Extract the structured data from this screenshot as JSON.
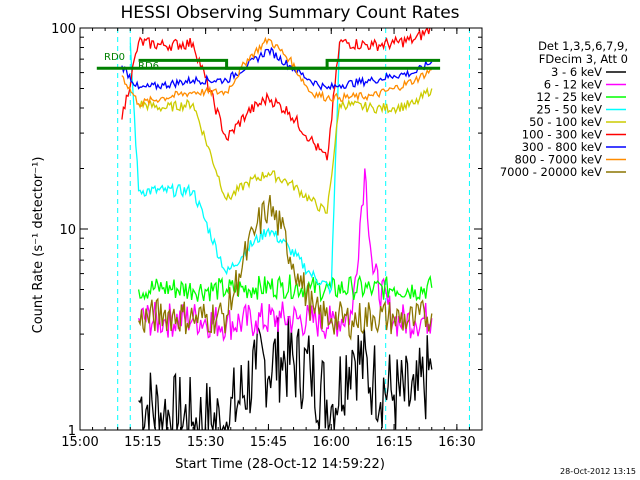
{
  "chart_data": {
    "type": "line",
    "title": "HESSI Observing Summary Count Rates",
    "xlabel": "Start Time (28-Oct-12 14:59:22)",
    "ylabel": "Count Rate (s⁻¹ detector⁻¹)",
    "y_scale": "log",
    "ylim": [
      1,
      100
    ],
    "xlim": [
      "15:00",
      "16:36"
    ],
    "x_ticks": [
      "15:00",
      "15:15",
      "15:30",
      "15:45",
      "16:00",
      "16:15",
      "16:30"
    ],
    "y_ticks": [
      "1",
      "10",
      "100"
    ],
    "grid": false,
    "legend_position": "right",
    "legend_header": [
      "Det 1,3,5,6,7,9,",
      "FDecim 3, Att 0"
    ],
    "footer_timestamp": "28-Oct-2012 13:15",
    "annotations": [
      "RD0",
      "RD6"
    ],
    "night_intervals": [
      {
        "start": "15:09",
        "end": "15:12"
      },
      {
        "start": "16:13",
        "end": "16:33"
      }
    ],
    "series": [
      {
        "name": "3 - 6 keV",
        "color": "#000000",
        "x": [
          "15:14",
          "15:20",
          "15:27",
          "15:35",
          "15:42",
          "15:48",
          "15:55",
          "16:00",
          "16:05",
          "16:10",
          "16:15",
          "16:20",
          "16:24"
        ],
        "y": [
          1.4,
          1.2,
          1.1,
          1.1,
          2.0,
          2.3,
          2.0,
          1.3,
          2.5,
          1.8,
          1.5,
          1.4,
          2.0
        ]
      },
      {
        "name": "6 - 12 keV",
        "color": "#ff00ff",
        "x": [
          "15:14",
          "15:20",
          "15:27",
          "15:35",
          "15:42",
          "15:48",
          "15:55",
          "16:00",
          "16:05",
          "16:08",
          "16:10",
          "16:15",
          "16:20",
          "16:24"
        ],
        "y": [
          3.6,
          3.5,
          3.6,
          3.4,
          3.5,
          3.6,
          3.5,
          3.4,
          3.8,
          20.0,
          6.0,
          3.5,
          3.5,
          3.6
        ]
      },
      {
        "name": "12 - 25 keV",
        "color": "#00ff00",
        "x": [
          "15:14",
          "15:20",
          "15:27",
          "15:35",
          "15:42",
          "15:48",
          "15:55",
          "16:00",
          "16:05",
          "16:10",
          "16:15",
          "16:20",
          "16:24"
        ],
        "y": [
          5.0,
          5.1,
          5.0,
          5.0,
          5.1,
          5.2,
          5.1,
          5.0,
          5.1,
          5.0,
          5.1,
          5.0,
          5.1
        ]
      },
      {
        "name": "25 - 50 keV",
        "color": "#00ffff",
        "x": [
          "15:12",
          "15:14",
          "15:20",
          "15:27",
          "15:35",
          "15:40",
          "15:45",
          "15:50",
          "15:55",
          "16:00",
          "16:02"
        ],
        "y": [
          85,
          15.5,
          15.5,
          15.5,
          6.0,
          8.0,
          10.0,
          8.0,
          6.0,
          5.0,
          85
        ]
      },
      {
        "name": "50 - 100 keV",
        "color": "#cccc00",
        "x": [
          "15:14",
          "15:20",
          "15:27",
          "15:35",
          "15:40",
          "15:45",
          "15:50",
          "15:55",
          "15:59",
          "16:02",
          "16:10",
          "16:15",
          "16:20",
          "16:24"
        ],
        "y": [
          42,
          40,
          42,
          14.0,
          17.0,
          19.0,
          17.0,
          14.0,
          12.0,
          42,
          40,
          40,
          42,
          50
        ]
      },
      {
        "name": "100 - 300 keV",
        "color": "#ff0000",
        "x": [
          "15:10",
          "15:14",
          "15:20",
          "15:27",
          "15:35",
          "15:40",
          "15:45",
          "15:50",
          "15:55",
          "15:59",
          "16:02",
          "16:10",
          "16:15",
          "16:20",
          "16:24"
        ],
        "y": [
          35,
          85,
          82,
          84,
          28,
          38,
          45,
          38,
          28,
          22,
          85,
          82,
          84,
          88,
          100
        ]
      },
      {
        "name": "300 - 800 keV",
        "color": "#0000ff",
        "x": [
          "15:10",
          "15:14",
          "15:20",
          "15:27",
          "15:35",
          "15:40",
          "15:45",
          "15:50",
          "15:55",
          "15:59",
          "16:02",
          "16:10",
          "16:15",
          "16:20",
          "16:24"
        ],
        "y": [
          65,
          50,
          52,
          55,
          55,
          65,
          78,
          65,
          55,
          50,
          52,
          55,
          58,
          60,
          68
        ]
      },
      {
        "name": "800 - 7000 keV",
        "color": "#ff8c00",
        "x": [
          "15:10",
          "15:14",
          "15:20",
          "15:27",
          "15:35",
          "15:40",
          "15:45",
          "15:50",
          "15:55",
          "15:59",
          "16:02",
          "16:10",
          "16:15",
          "16:20",
          "16:24"
        ],
        "y": [
          58,
          42,
          45,
          48,
          48,
          70,
          88,
          70,
          48,
          45,
          45,
          46,
          50,
          55,
          62
        ]
      },
      {
        "name": "7000 - 20000 keV",
        "color": "#8b7500",
        "x": [
          "15:14",
          "15:20",
          "15:27",
          "15:35",
          "15:38",
          "15:42",
          "15:45",
          "15:48",
          "15:52",
          "15:56",
          "16:00",
          "16:05",
          "16:10",
          "16:15",
          "16:20",
          "16:24"
        ],
        "y": [
          3.5,
          3.8,
          3.6,
          3.7,
          6.0,
          10.0,
          13.0,
          10.0,
          6.0,
          3.8,
          3.6,
          3.5,
          3.7,
          3.6,
          3.5,
          3.8
        ]
      },
      {
        "name": "RD0",
        "color": "#008000",
        "x": [
          "15:04",
          "16:26"
        ],
        "y": [
          63,
          63
        ]
      },
      {
        "name": "RD6",
        "color": "#008000",
        "x": [
          "15:14",
          "15:35",
          "15:35",
          "15:59",
          "15:59",
          "16:26"
        ],
        "y": [
          69,
          69,
          63,
          63,
          69,
          69
        ]
      }
    ]
  }
}
